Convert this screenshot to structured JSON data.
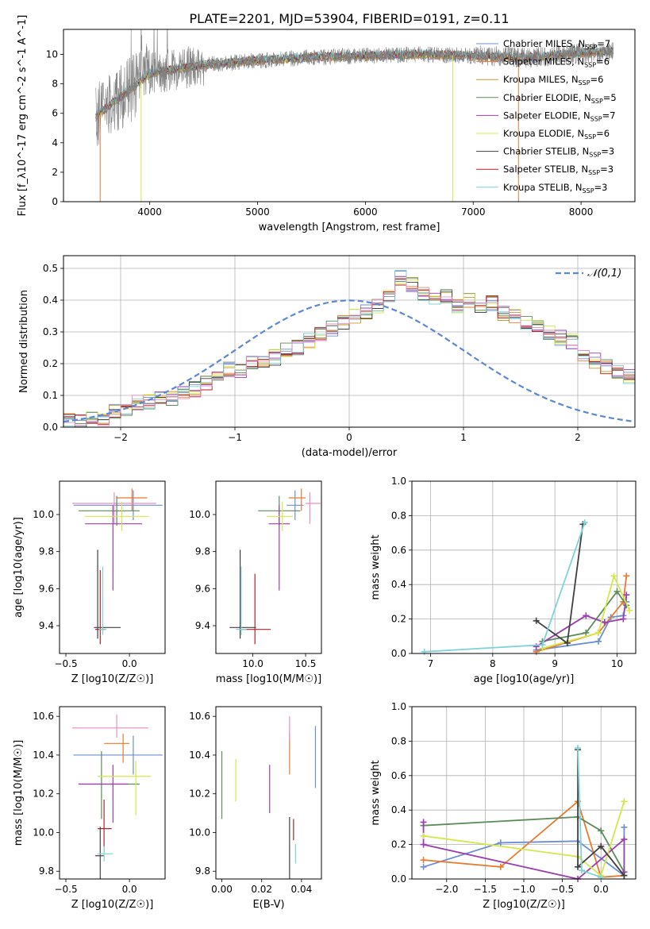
{
  "title": "PLATE=2201, MJD=53904, FIBERID=0191, z=0.11",
  "colors": {
    "Chabrier MILES": "#6b8fd6",
    "Salpeter MILES": "#e87a2e",
    "Kroupa MILES": "#c79a2b",
    "Chabrier ELODIE": "#5b8c5a",
    "Salpeter ELODIE": "#9b3fb0",
    "Kroupa ELODIE": "#d4e84a",
    "Chabrier STELIB": "#404040",
    "Salpeter STELIB": "#b22222",
    "Kroupa STELIB": "#7fd3d6",
    "spectrum": "#808080",
    "pink": "#e88fc4"
  },
  "chart_data": [
    {
      "id": "spectrum",
      "type": "line",
      "xlabel": "wavelength [Angstrom, rest frame]",
      "ylabel": "Flux [f_λ10^-17 erg cm^-2 s^-1 A^-1]",
      "xlim": [
        3200,
        8500
      ],
      "ylim": [
        0,
        11.7
      ],
      "xticks": [
        "4000",
        "5000",
        "6000",
        "7000",
        "8000"
      ],
      "yticks": [
        "0",
        "2",
        "4",
        "6",
        "8",
        "10"
      ],
      "legend": "top-right",
      "legend_entries": [
        {
          "name": "Chabrier MILES",
          "nssp": "7"
        },
        {
          "name": "Salpeter MILES",
          "nssp": "6"
        },
        {
          "name": "Kroupa MILES",
          "nssp": "6"
        },
        {
          "name": "Chabrier ELODIE",
          "nssp": "5"
        },
        {
          "name": "Salpeter ELODIE",
          "nssp": "7"
        },
        {
          "name": "Kroupa ELODIE",
          "nssp": "6"
        },
        {
          "name": "Chabrier STELIB",
          "nssp": "3"
        },
        {
          "name": "Salpeter STELIB",
          "nssp": "3"
        },
        {
          "name": "Kroupa STELIB",
          "nssp": "3"
        }
      ],
      "data_range": [
        3500,
        8300
      ],
      "model_values": {
        "x": [
          3500,
          3800,
          4000,
          4500,
          5000,
          5500,
          6000,
          6500,
          7000,
          7500,
          8000,
          8300
        ],
        "y": [
          5.8,
          7.5,
          8.7,
          9.3,
          9.6,
          9.8,
          9.9,
          10.0,
          9.9,
          9.8,
          10.1,
          10.2
        ]
      }
    },
    {
      "id": "residuals",
      "type": "histogram",
      "xlabel": "(data-model)/error",
      "ylabel": "Normed distribution",
      "xlim": [
        -2.5,
        2.5
      ],
      "ylim": [
        0,
        0.54
      ],
      "xticks": [
        "−2",
        "−1",
        "0",
        "1",
        "2"
      ],
      "yticks": [
        "0.0",
        "0.1",
        "0.2",
        "0.3",
        "0.4",
        "0.5"
      ],
      "grid": true,
      "legend": "top-right",
      "legend_label": "𝒩(0,1)",
      "bin_width": 0.1,
      "bins_start": -2.5,
      "values": [
        0.02,
        0.02,
        0.03,
        0.03,
        0.05,
        0.06,
        0.08,
        0.08,
        0.1,
        0.09,
        0.11,
        0.12,
        0.14,
        0.16,
        0.18,
        0.18,
        0.2,
        0.21,
        0.22,
        0.24,
        0.25,
        0.27,
        0.29,
        0.31,
        0.33,
        0.35,
        0.36,
        0.38,
        0.41,
        0.47,
        0.45,
        0.42,
        0.4,
        0.41,
        0.38,
        0.4,
        0.37,
        0.39,
        0.36,
        0.35,
        0.33,
        0.32,
        0.3,
        0.28,
        0.27,
        0.23,
        0.21,
        0.19,
        0.17,
        0.16
      ]
    },
    {
      "id": "age_vs_Z",
      "type": "errorbar",
      "xlabel": "Z [log10(Z/Z☉)]",
      "ylabel": "age [log10(age/yr)]",
      "xlim": [
        -0.55,
        0.28
      ],
      "ylim": [
        9.25,
        10.18
      ],
      "xticks": [
        "−0.5",
        "0.0"
      ],
      "yticks": [
        "9.4",
        "9.6",
        "9.8",
        "10.0"
      ],
      "points": [
        {
          "series": "Chabrier MILES",
          "x": 0.03,
          "y": 10.05,
          "xerr": [
            0.47,
            0.23
          ],
          "yerr": [
            0.08,
            0.08
          ]
        },
        {
          "series": "Salpeter MILES",
          "x": 0.02,
          "y": 10.09,
          "xerr": [
            0.12,
            0.12
          ],
          "yerr": [
            0.07,
            0.05
          ]
        },
        {
          "series": "pink",
          "x": -0.12,
          "y": 10.06,
          "xerr": [
            0.33,
            0.33
          ],
          "yerr": [
            0.11,
            0.06
          ]
        },
        {
          "series": "Chabrier ELODIE",
          "x": -0.1,
          "y": 10.02,
          "xerr": [
            0.3,
            0.18
          ],
          "yerr": [
            0.08,
            0.08
          ]
        },
        {
          "series": "Salpeter ELODIE",
          "x": -0.13,
          "y": 9.95,
          "xerr": [
            0.22,
            0.23
          ],
          "yerr": [
            0.36,
            0.1
          ]
        },
        {
          "series": "Kroupa ELODIE",
          "x": -0.06,
          "y": 9.99,
          "xerr": [
            0.29,
            0.21
          ],
          "yerr": [
            0.08,
            0.08
          ]
        },
        {
          "series": "Chabrier STELIB",
          "x": -0.25,
          "y": 9.39,
          "xerr": [
            0.03,
            0.18
          ],
          "yerr": [
            0.06,
            0.42
          ]
        },
        {
          "series": "Salpeter STELIB",
          "x": -0.23,
          "y": 9.38,
          "xerr": [
            0.04,
            0.04
          ],
          "yerr": [
            0.08,
            0.32
          ]
        },
        {
          "series": "Kroupa STELIB",
          "x": -0.21,
          "y": 9.38,
          "xerr": [
            0.03,
            0.03
          ],
          "yerr": [
            0.03,
            0.34
          ]
        }
      ]
    },
    {
      "id": "age_vs_mass",
      "type": "errorbar",
      "xlabel": "mass [log10(M/M☉)]",
      "ylabel": "",
      "xlim": [
        9.65,
        10.65
      ],
      "ylim": [
        9.25,
        10.18
      ],
      "xticks": [
        "10.0",
        "10.5"
      ],
      "yticks": [
        "9.4",
        "9.6",
        "9.8",
        "10.0"
      ],
      "points": [
        {
          "series": "Chabrier MILES",
          "x": 10.4,
          "y": 10.05,
          "xerr": [
            0.08,
            0.08
          ],
          "yerr": [
            0.08,
            0.08
          ]
        },
        {
          "series": "Salpeter MILES",
          "x": 10.46,
          "y": 10.09,
          "xerr": [
            0.12,
            0.04
          ],
          "yerr": [
            0.07,
            0.05
          ]
        },
        {
          "series": "pink",
          "x": 10.54,
          "y": 10.06,
          "xerr": [
            0.04,
            0.1
          ],
          "yerr": [
            0.11,
            0.06
          ]
        },
        {
          "series": "Chabrier ELODIE",
          "x": 10.25,
          "y": 10.02,
          "xerr": [
            0.2,
            0.2
          ],
          "yerr": [
            0.08,
            0.08
          ]
        },
        {
          "series": "Salpeter ELODIE",
          "x": 10.25,
          "y": 9.95,
          "xerr": [
            0.1,
            0.1
          ],
          "yerr": [
            0.36,
            0.1
          ]
        },
        {
          "series": "Kroupa ELODIE",
          "x": 10.28,
          "y": 9.99,
          "xerr": [
            0.15,
            0.1
          ],
          "yerr": [
            0.08,
            0.08
          ]
        },
        {
          "series": "Chabrier STELIB",
          "x": 9.88,
          "y": 9.39,
          "xerr": [
            0.1,
            0.15
          ],
          "yerr": [
            0.06,
            0.42
          ]
        },
        {
          "series": "Salpeter STELIB",
          "x": 10.02,
          "y": 9.38,
          "xerr": [
            0.15,
            0.15
          ],
          "yerr": [
            0.08,
            0.3
          ]
        },
        {
          "series": "Kroupa STELIB",
          "x": 9.89,
          "y": 9.38,
          "xerr": [
            0.05,
            0.05
          ],
          "yerr": [
            0.03,
            0.34
          ]
        }
      ]
    },
    {
      "id": "weight_vs_age",
      "type": "line",
      "xlabel": "age [log10(age/yr)]",
      "ylabel": "mass weight",
      "xlim": [
        6.7,
        10.3
      ],
      "ylim": [
        0,
        1.0
      ],
      "xticks": [
        "7",
        "8",
        "9",
        "10"
      ],
      "yticks": [
        "0.0",
        "0.2",
        "0.4",
        "0.6",
        "0.8",
        "1.0"
      ],
      "grid": true,
      "series": [
        {
          "name": "Chabrier MILES",
          "x": [
            8.7,
            9.7,
            9.9,
            10.1,
            10.15
          ],
          "y": [
            0.02,
            0.07,
            0.21,
            0.22,
            0.3
          ]
        },
        {
          "name": "Salpeter MILES",
          "x": [
            8.7,
            9.7,
            10.1,
            10.15
          ],
          "y": [
            0.01,
            0.12,
            0.3,
            0.45
          ]
        },
        {
          "name": "Chabrier ELODIE",
          "x": [
            8.8,
            9.5,
            10.0,
            10.15
          ],
          "y": [
            0.07,
            0.12,
            0.36,
            0.28
          ]
        },
        {
          "name": "Salpeter ELODIE",
          "x": [
            8.7,
            9.5,
            9.8,
            10.1,
            10.15
          ],
          "y": [
            0.04,
            0.22,
            0.18,
            0.2,
            0.34
          ]
        },
        {
          "name": "Kroupa ELODIE",
          "x": [
            8.8,
            9.7,
            9.95,
            10.2
          ],
          "y": [
            0.03,
            0.12,
            0.45,
            0.25
          ]
        },
        {
          "name": "Chabrier STELIB",
          "x": [
            8.7,
            9.2,
            9.45
          ],
          "y": [
            0.19,
            0.06,
            0.75
          ]
        },
        {
          "name": "Kroupa STELIB",
          "x": [
            6.9,
            8.8,
            9.48
          ],
          "y": [
            0.01,
            0.05,
            0.76
          ]
        }
      ]
    },
    {
      "id": "mass_vs_Z",
      "type": "errorbar",
      "xlabel": "Z [log10(Z/Z☉)]",
      "ylabel": "mass [log10(M/M☉)]",
      "xlim": [
        -0.55,
        0.28
      ],
      "ylim": [
        9.76,
        10.65
      ],
      "xticks": [
        "−0.5",
        "0.0"
      ],
      "yticks": [
        "9.8",
        "10.0",
        "10.2",
        "10.4",
        "10.6"
      ],
      "points": [
        {
          "series": "Chabrier MILES",
          "x": 0.03,
          "y": 10.4,
          "xerr": [
            0.47,
            0.23
          ],
          "yerr": [
            0.1,
            0.1
          ]
        },
        {
          "series": "Salpeter MILES",
          "x": -0.05,
          "y": 10.46,
          "xerr": [
            0.15,
            0.05
          ],
          "yerr": [
            0.1,
            0.05
          ]
        },
        {
          "series": "pink",
          "x": -0.1,
          "y": 10.54,
          "xerr": [
            0.35,
            0.25
          ],
          "yerr": [
            0.05,
            0.07
          ]
        },
        {
          "series": "Chabrier ELODIE",
          "x": -0.22,
          "y": 10.25,
          "xerr": [
            0.18,
            0.3
          ],
          "yerr": [
            0.18,
            0.17
          ]
        },
        {
          "series": "Salpeter ELODIE",
          "x": -0.13,
          "y": 10.25,
          "xerr": [
            0.27,
            0.12
          ],
          "yerr": [
            0.2,
            0.1
          ]
        },
        {
          "series": "Kroupa ELODIE",
          "x": 0.05,
          "y": 10.29,
          "xerr": [
            0.3,
            0.12
          ],
          "yerr": [
            0.2,
            0.08
          ]
        },
        {
          "series": "Chabrier STELIB",
          "x": -0.23,
          "y": 9.88,
          "xerr": [
            0.04,
            0.03
          ],
          "yerr": [
            0.12,
            0.15
          ]
        },
        {
          "series": "Salpeter STELIB",
          "x": -0.2,
          "y": 10.02,
          "xerr": [
            0.05,
            0.06
          ],
          "yerr": [
            0.12,
            0.15
          ]
        },
        {
          "series": "Kroupa STELIB",
          "x": -0.2,
          "y": 9.89,
          "xerr": [
            0.05,
            0.07
          ],
          "yerr": [
            0.04,
            0.04
          ]
        }
      ]
    },
    {
      "id": "mass_vs_EBV",
      "type": "errorbar",
      "xlabel": "E(B-V)",
      "ylabel": "",
      "xlim": [
        -0.003,
        0.05
      ],
      "ylim": [
        9.76,
        10.65
      ],
      "xticks": [
        "0.00",
        "0.02",
        "0.04"
      ],
      "yticks": [
        "9.8",
        "10.0",
        "10.2",
        "10.4",
        "10.6"
      ],
      "points": [
        {
          "series": "Chabrier MILES",
          "x": 0.047,
          "y": 10.38,
          "yerr": [
            0.15,
            0.17
          ]
        },
        {
          "series": "Salpeter MILES",
          "x": 0.034,
          "y": 10.44,
          "yerr": [
            0.14,
            0.08
          ]
        },
        {
          "series": "pink",
          "x": 0.034,
          "y": 10.55,
          "yerr": [
            0.07,
            0.05
          ]
        },
        {
          "series": "Chabrier ELODIE",
          "x": 0.0,
          "y": 10.24,
          "yerr": [
            0.17,
            0.18
          ]
        },
        {
          "series": "Salpeter ELODIE",
          "x": 0.024,
          "y": 10.25,
          "yerr": [
            0.15,
            0.1
          ]
        },
        {
          "series": "Kroupa ELODIE",
          "x": 0.007,
          "y": 10.28,
          "yerr": [
            0.12,
            0.1
          ]
        },
        {
          "series": "Chabrier STELIB",
          "x": 0.034,
          "y": 9.88,
          "yerr": [
            0.12,
            0.2
          ]
        },
        {
          "series": "Salpeter STELIB",
          "x": 0.036,
          "y": 10.02,
          "yerr": [
            0.06,
            0.05
          ]
        },
        {
          "series": "Kroupa STELIB",
          "x": 0.037,
          "y": 9.89,
          "yerr": [
            0.05,
            0.05
          ]
        }
      ]
    },
    {
      "id": "weight_vs_Z",
      "type": "line",
      "xlabel": "Z [log10(Z/Z☉)]",
      "ylabel": "mass weight",
      "xlim": [
        -2.45,
        0.45
      ],
      "ylim": [
        0,
        1.0
      ],
      "xticks": [
        "−2.0",
        "−1.5",
        "−1.0",
        "−0.5",
        "0.0"
      ],
      "yticks": [
        "0.0",
        "0.2",
        "0.4",
        "0.6",
        "0.8",
        "1.0"
      ],
      "grid": true,
      "series": [
        {
          "name": "Chabrier MILES",
          "x": [
            -2.3,
            -1.3,
            -0.3,
            0.3,
            0.3
          ],
          "y": [
            0.07,
            0.21,
            0.22,
            0.02,
            0.3
          ]
        },
        {
          "name": "Salpeter MILES",
          "x": [
            -2.3,
            -1.3,
            -0.3,
            0.0,
            0.3
          ],
          "y": [
            0.11,
            0.07,
            0.45,
            0.01,
            0.02
          ]
        },
        {
          "name": "Chabrier ELODIE",
          "x": [
            -2.3,
            -0.3,
            0.0,
            0.3
          ],
          "y": [
            0.31,
            0.36,
            0.28,
            0.04
          ]
        },
        {
          "name": "Salpeter ELODIE",
          "x": [
            -2.3,
            -2.3,
            -0.3,
            0.3,
            0.3
          ],
          "y": [
            0.33,
            0.2,
            0.0,
            0.23,
            0.04
          ]
        },
        {
          "name": "Kroupa ELODIE",
          "x": [
            -2.3,
            -0.3,
            0.0,
            0.3
          ],
          "y": [
            0.25,
            0.13,
            0.02,
            0.45
          ]
        },
        {
          "name": "Chabrier STELIB",
          "x": [
            -0.3,
            -0.3,
            0.0,
            0.3
          ],
          "y": [
            0.75,
            0.07,
            0.19,
            0.02
          ]
        },
        {
          "name": "Kroupa STELIB",
          "x": [
            -0.3,
            -0.25,
            0.0
          ],
          "y": [
            0.76,
            0.05,
            0.01
          ]
        }
      ]
    }
  ]
}
